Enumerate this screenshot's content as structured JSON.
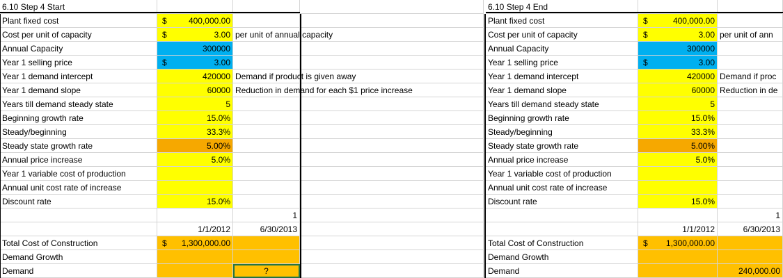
{
  "left": {
    "title": "6.10 Step 4 Start",
    "rows": [
      {
        "label": "Plant fixed cost",
        "sym": "$",
        "value": "400,000.00",
        "note": ""
      },
      {
        "label": "Cost per unit of capacity",
        "sym": "$",
        "value": "3.00",
        "note": "per unit of annual capacity"
      },
      {
        "label": "Annual Capacity",
        "sym": "",
        "value": "300000",
        "note": ""
      },
      {
        "label": "Year 1 selling price",
        "sym": "$",
        "value": "3.00",
        "note": ""
      },
      {
        "label": "Year 1 demand intercept",
        "sym": "",
        "value": "420000",
        "note": "Demand if product is given away"
      },
      {
        "label": "Year 1 demand slope",
        "sym": "",
        "value": "60000",
        "note": "Reduction in demand for each $1 price increase"
      },
      {
        "label": "Years till demand steady state",
        "sym": "",
        "value": "5",
        "note": ""
      },
      {
        "label": "Beginning growth rate",
        "sym": "",
        "value": "15.0%",
        "note": ""
      },
      {
        "label": "Steady/beginning",
        "sym": "",
        "value": "33.3%",
        "note": ""
      },
      {
        "label": "Steady state growth rate",
        "sym": "",
        "value": "5.00%",
        "note": ""
      },
      {
        "label": "Annual price increase",
        "sym": "",
        "value": "5.0%",
        "note": ""
      },
      {
        "label": "Year 1 variable cost of production",
        "sym": "",
        "value": "",
        "note": ""
      },
      {
        "label": "Annual unit cost rate of increase",
        "sym": "",
        "value": "",
        "note": ""
      },
      {
        "label": "Discount rate",
        "sym": "",
        "value": "15.0%",
        "note": ""
      }
    ],
    "index_value": "1",
    "date1": "1/1/2012",
    "date2": "6/30/2013",
    "construction_label": "Total Cost of Construction",
    "construction_sym": "$",
    "construction_value": "1,300,000.00",
    "growth_label": "Demand Growth",
    "demand_label": "Demand",
    "demand_value": "?"
  },
  "right": {
    "title": "6.10 Step 4 End",
    "rows": [
      {
        "label": "Plant fixed cost",
        "sym": "$",
        "value": "400,000.00",
        "note": ""
      },
      {
        "label": "Cost per unit of capacity",
        "sym": "$",
        "value": "3.00",
        "note": "per unit of ann"
      },
      {
        "label": "Annual Capacity",
        "sym": "",
        "value": "300000",
        "note": ""
      },
      {
        "label": "Year 1 selling price",
        "sym": "$",
        "value": "3.00",
        "note": ""
      },
      {
        "label": "Year 1 demand intercept",
        "sym": "",
        "value": "420000",
        "note": "Demand if proc"
      },
      {
        "label": "Year 1 demand slope",
        "sym": "",
        "value": "60000",
        "note": "Reduction in de"
      },
      {
        "label": "Years till demand steady state",
        "sym": "",
        "value": "5",
        "note": ""
      },
      {
        "label": "Beginning growth rate",
        "sym": "",
        "value": "15.0%",
        "note": ""
      },
      {
        "label": "Steady/beginning",
        "sym": "",
        "value": "33.3%",
        "note": ""
      },
      {
        "label": "Steady state growth rate",
        "sym": "",
        "value": "5.00%",
        "note": ""
      },
      {
        "label": "Annual price increase",
        "sym": "",
        "value": "5.0%",
        "note": ""
      },
      {
        "label": "Year 1 variable cost of production",
        "sym": "",
        "value": "",
        "note": ""
      },
      {
        "label": "Annual unit cost rate of increase",
        "sym": "",
        "value": "",
        "note": ""
      },
      {
        "label": "Discount rate",
        "sym": "",
        "value": "15.0%",
        "note": ""
      }
    ],
    "index_value": "1",
    "date1": "1/1/2012",
    "date2": "6/30/2013",
    "construction_label": "Total Cost of Construction",
    "construction_sym": "$",
    "construction_value": "1,300,000.00",
    "growth_label": "Demand Growth",
    "demand_label": "Demand",
    "demand_value": "240,000.00"
  },
  "colors": {
    "yellow": "#ffff00",
    "blue": "#00b0f0",
    "orange": "#ffc000",
    "dark_orange": "#f6a800",
    "selection": "#217346"
  }
}
